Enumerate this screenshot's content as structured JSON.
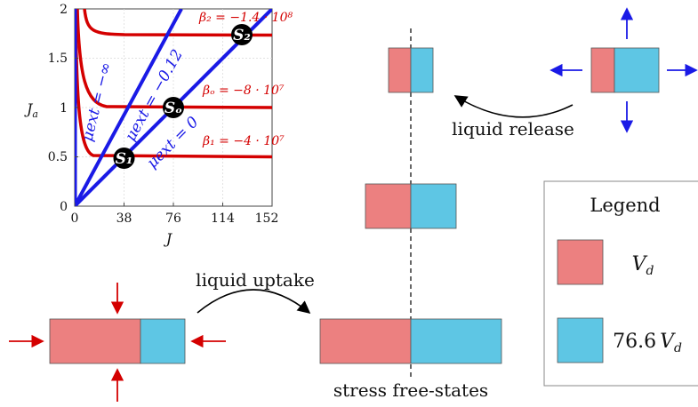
{
  "colors": {
    "dry": "#ec8080",
    "solvent": "#5ec6e4",
    "blue": "#1a1ae6",
    "red": "#d40000"
  },
  "plot": {
    "y_axis_label": "J",
    "y_axis_subscript": "a",
    "x_axis_label": "J",
    "x_ticks": [
      "0",
      "38",
      "76",
      "114",
      "152"
    ],
    "y_ticks": [
      "0",
      "0.5",
      "1",
      "1.5",
      "2"
    ],
    "beta_labels": {
      "beta2": "β₂ = −1.4 · 10⁸",
      "beta0": "βₒ = −8 · 10⁷",
      "beta1": "β₁ = −4 · 10⁷"
    },
    "mu_labels": {
      "inf": "μext = −∞",
      "mid": "μext = −0.12",
      "zero": "μext = 0"
    },
    "states": {
      "s2": "S₂",
      "s0": "Sₒ",
      "s1": "S₁"
    }
  },
  "labels": {
    "liquid_release": "liquid release",
    "liquid_uptake": "liquid uptake",
    "stress_free": "stress free-states"
  },
  "legend": {
    "title": "Legend",
    "dry_label": "V",
    "dry_sub": "d",
    "solvent_coef": "76.6",
    "solvent_label": "V",
    "solvent_sub": "d"
  },
  "chart_data": {
    "type": "line",
    "xlabel": "J",
    "ylabel": "J_a",
    "xlim": [
      0,
      152
    ],
    "ylim": [
      0,
      2
    ],
    "x_ticks": [
      0,
      38,
      76,
      114,
      152
    ],
    "y_ticks": [
      0,
      0.5,
      1,
      1.5,
      2
    ],
    "series": [
      {
        "name": "β₂ = −1.4·10⁸",
        "color": "#d40000",
        "asymptote_y": 1.75
      },
      {
        "name": "βₒ = −8·10⁷",
        "color": "#d40000",
        "asymptote_y": 1.0
      },
      {
        "name": "β₁ = −4·10⁷",
        "color": "#d40000",
        "asymptote_y": 0.5
      },
      {
        "name": "μext = −∞",
        "color": "#1a1ae6",
        "slope": 0.15
      },
      {
        "name": "μext = −0.12",
        "color": "#1a1ae6",
        "slope": 0.0263
      },
      {
        "name": "μext = 0",
        "color": "#1a1ae6",
        "slope": 0.0132
      }
    ],
    "points": [
      {
        "name": "S₁",
        "x": 38,
        "y": 0.5
      },
      {
        "name": "Sₒ",
        "x": 76,
        "y": 1.0
      },
      {
        "name": "S₂",
        "x": 133,
        "y": 1.75
      }
    ]
  }
}
